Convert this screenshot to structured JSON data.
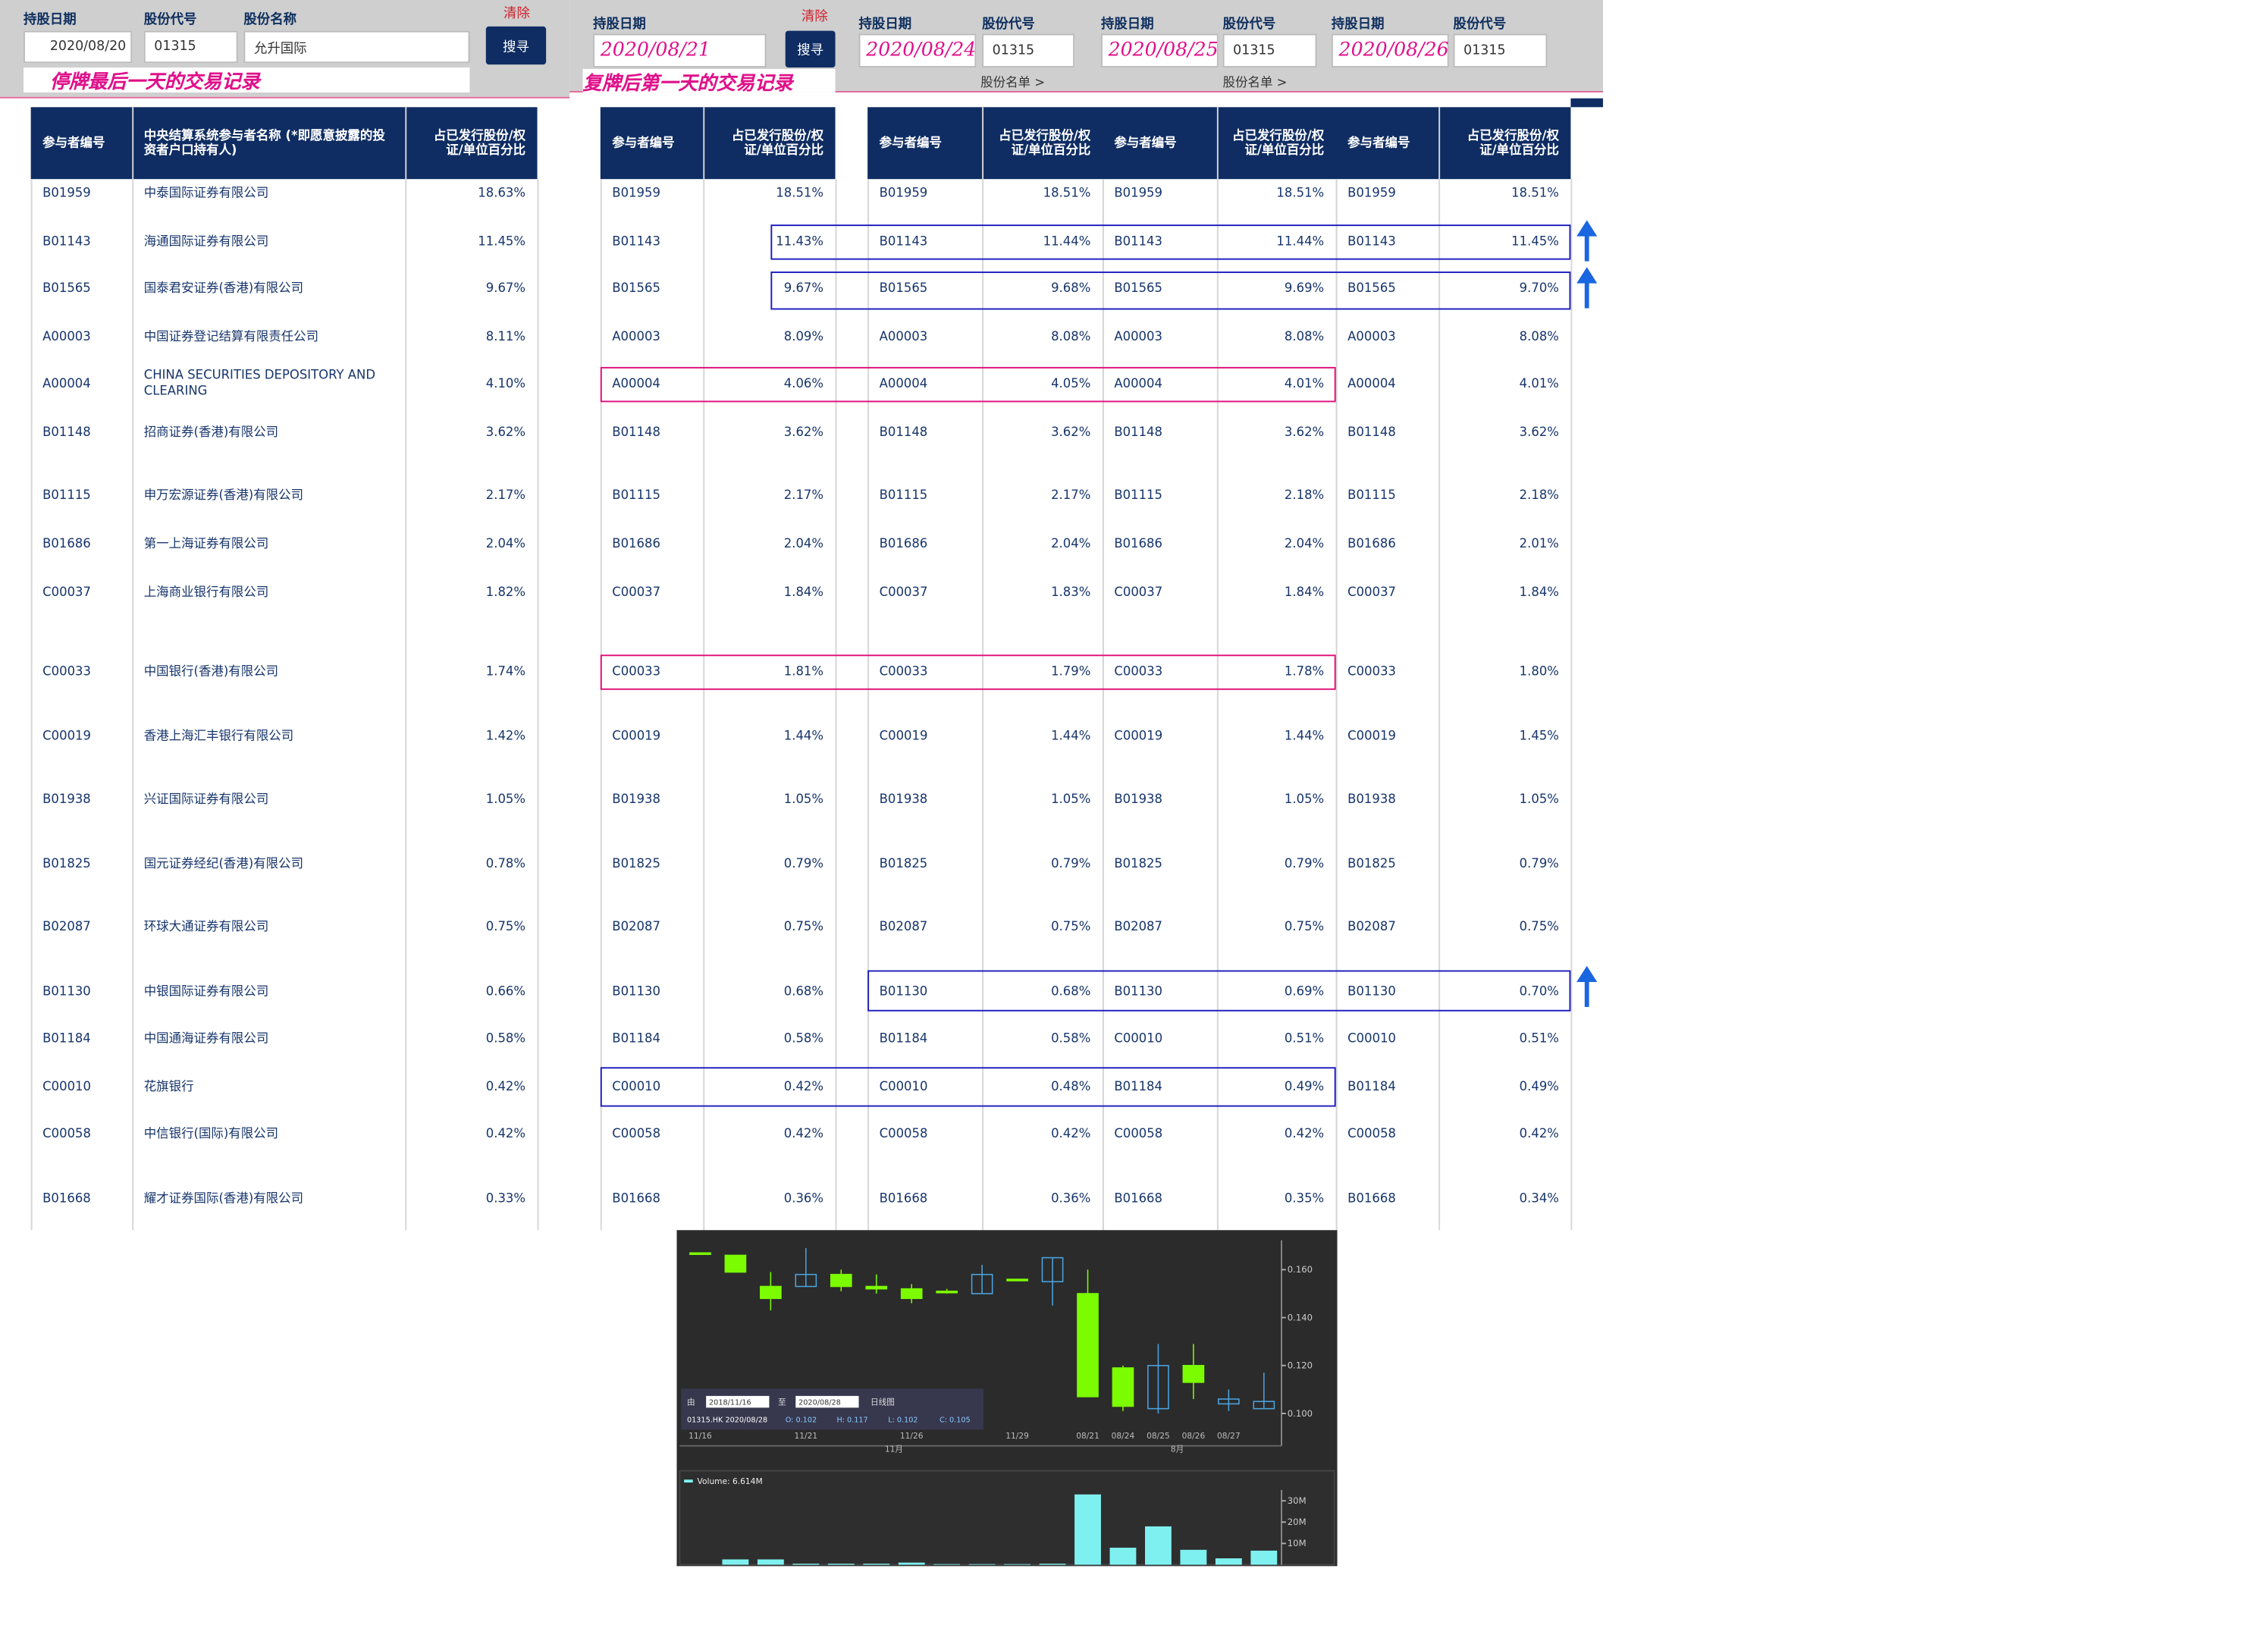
{
  "panels": [
    {
      "date_label": "持股日期",
      "code_label": "股份代号",
      "name_label": "股份名称",
      "date": "2020/08/20",
      "code": "01315",
      "name": "允升国际",
      "search": "搜寻",
      "clear": "清除",
      "note": "停牌最后一天的交易记录"
    },
    {
      "date_label": "持股日期",
      "date": "2020/08/21",
      "search": "搜寻",
      "clear": "清除",
      "note": "复牌后第一天的交易记录"
    },
    {
      "date_label": "持股日期",
      "code_label": "股份代号",
      "date": "2020/08/24",
      "code": "01315",
      "link": "股份名单 >"
    },
    {
      "date_label": "持股日期",
      "code_label": "股份代号",
      "date": "2020/08/25",
      "code": "01315",
      "link": "股份名单 >"
    },
    {
      "date_label": "持股日期",
      "code_label": "股份代号",
      "date": "2020/08/26",
      "code": "01315"
    }
  ],
  "tables": [
    {
      "headers": [
        "参与者编号",
        "中央结算系统参与者名称 (*即愿意披露的投资者户口持有人)",
        "占已发行股份/权证/单位百分比"
      ],
      "rows": [
        [
          "B01959",
          "中泰国际证券有限公司",
          "18.63%"
        ],
        [
          "B01143",
          "海通国际证券有限公司",
          "11.45%"
        ],
        [
          "B01565",
          "国泰君安证券(香港)有限公司",
          "9.67%"
        ],
        [
          "A00003",
          "中国证券登记结算有限责任公司",
          "8.11%"
        ],
        [
          "A00004",
          "CHINA SECURITIES DEPOSITORY AND CLEARING",
          "4.10%"
        ],
        [
          "B01148",
          "招商证券(香港)有限公司",
          "3.62%"
        ],
        [
          "B01115",
          "申万宏源证券(香港)有限公司",
          "2.17%"
        ],
        [
          "B01686",
          "第一上海证券有限公司",
          "2.04%"
        ],
        [
          "C00037",
          "上海商业银行有限公司",
          "1.82%"
        ],
        [
          "C00033",
          "中国银行(香港)有限公司",
          "1.74%"
        ],
        [
          "C00019",
          "香港上海汇丰银行有限公司",
          "1.42%"
        ],
        [
          "B01938",
          "兴证国际证券有限公司",
          "1.05%"
        ],
        [
          "B01825",
          "国元证券经纪(香港)有限公司",
          "0.78%"
        ],
        [
          "B02087",
          "环球大通证券有限公司",
          "0.75%"
        ],
        [
          "B01130",
          "中银国际证券有限公司",
          "0.66%"
        ],
        [
          "B01184",
          "中国通海证券有限公司",
          "0.58%"
        ],
        [
          "C00010",
          "花旗银行",
          "0.42%"
        ],
        [
          "C00058",
          "中信银行(国际)有限公司",
          "0.42%"
        ],
        [
          "B01668",
          "耀才证券国际(香港)有限公司",
          "0.33%"
        ]
      ]
    },
    {
      "headers": [
        "参与者编号",
        "占已发行股份/权证/单位百分比"
      ],
      "rows": [
        [
          "B01959",
          "18.51%"
        ],
        [
          "B01143",
          "11.43%"
        ],
        [
          "B01565",
          "9.67%"
        ],
        [
          "A00003",
          "8.09%"
        ],
        [
          "A00004",
          "4.06%"
        ],
        [
          "B01148",
          "3.62%"
        ],
        [
          "B01115",
          "2.17%"
        ],
        [
          "B01686",
          "2.04%"
        ],
        [
          "C00037",
          "1.84%"
        ],
        [
          "C00033",
          "1.81%"
        ],
        [
          "C00019",
          "1.44%"
        ],
        [
          "B01938",
          "1.05%"
        ],
        [
          "B01825",
          "0.79%"
        ],
        [
          "B02087",
          "0.75%"
        ],
        [
          "B01130",
          "0.68%"
        ],
        [
          "B01184",
          "0.58%"
        ],
        [
          "C00010",
          "0.42%"
        ],
        [
          "C00058",
          "0.42%"
        ],
        [
          "B01668",
          "0.36%"
        ]
      ]
    },
    {
      "headers": [
        "参与者编号",
        "占已发行股份/权证/单位百分比"
      ],
      "rows": [
        [
          "B01959",
          "18.51%"
        ],
        [
          "B01143",
          "11.44%"
        ],
        [
          "B01565",
          "9.68%"
        ],
        [
          "A00003",
          "8.08%"
        ],
        [
          "A00004",
          "4.05%"
        ],
        [
          "B01148",
          "3.62%"
        ],
        [
          "B01115",
          "2.17%"
        ],
        [
          "B01686",
          "2.04%"
        ],
        [
          "C00037",
          "1.83%"
        ],
        [
          "C00033",
          "1.79%"
        ],
        [
          "C00019",
          "1.44%"
        ],
        [
          "B01938",
          "1.05%"
        ],
        [
          "B01825",
          "0.79%"
        ],
        [
          "B02087",
          "0.75%"
        ],
        [
          "B01130",
          "0.68%"
        ],
        [
          "B01184",
          "0.58%"
        ],
        [
          "C00010",
          "0.48%"
        ],
        [
          "C00058",
          "0.42%"
        ],
        [
          "B01668",
          "0.36%"
        ]
      ]
    },
    {
      "headers": [
        "参与者编号",
        "占已发行股份/权证/单位百分比"
      ],
      "rows": [
        [
          "B01959",
          "18.51%"
        ],
        [
          "B01143",
          "11.44%"
        ],
        [
          "B01565",
          "9.69%"
        ],
        [
          "A00003",
          "8.08%"
        ],
        [
          "A00004",
          "4.01%"
        ],
        [
          "B01148",
          "3.62%"
        ],
        [
          "B01115",
          "2.18%"
        ],
        [
          "B01686",
          "2.04%"
        ],
        [
          "C00037",
          "1.84%"
        ],
        [
          "C00033",
          "1.78%"
        ],
        [
          "C00019",
          "1.44%"
        ],
        [
          "B01938",
          "1.05%"
        ],
        [
          "B01825",
          "0.79%"
        ],
        [
          "B02087",
          "0.75%"
        ],
        [
          "B01130",
          "0.69%"
        ],
        [
          "C00010",
          "0.51%"
        ],
        [
          "B01184",
          "0.49%"
        ],
        [
          "C00058",
          "0.42%"
        ],
        [
          "B01668",
          "0.35%"
        ]
      ]
    },
    {
      "headers": [
        "参与者编号",
        "占已发行股份/权证/单位百分比"
      ],
      "rows": [
        [
          "B01959",
          "18.51%"
        ],
        [
          "B01143",
          "11.45%"
        ],
        [
          "B01565",
          "9.70%"
        ],
        [
          "A00003",
          "8.08%"
        ],
        [
          "A00004",
          "4.01%"
        ],
        [
          "B01148",
          "3.62%"
        ],
        [
          "B01115",
          "2.18%"
        ],
        [
          "B01686",
          "2.01%"
        ],
        [
          "C00037",
          "1.84%"
        ],
        [
          "C00033",
          "1.80%"
        ],
        [
          "C00019",
          "1.45%"
        ],
        [
          "B01938",
          "1.05%"
        ],
        [
          "B01825",
          "0.79%"
        ],
        [
          "B02087",
          "0.75%"
        ],
        [
          "B01130",
          "0.70%"
        ],
        [
          "C00010",
          "0.51%"
        ],
        [
          "B01184",
          "0.49%"
        ],
        [
          "C00058",
          "0.42%"
        ],
        [
          "B01668",
          "0.34%"
        ]
      ]
    }
  ],
  "chart_data": {
    "type": "candlestick",
    "categories": [
      "11/16",
      null,
      null,
      "11/21",
      null,
      null,
      "11/26",
      null,
      null,
      "11/29",
      null,
      "08/21",
      "08/24",
      "08/25",
      "08/26",
      "08/27",
      null
    ],
    "x_groups": [
      "11月",
      "8月"
    ],
    "open": [
      0.167,
      0.166,
      0.153,
      0.153,
      0.158,
      0.153,
      0.152,
      0.151,
      0.15,
      0.156,
      0.155,
      0.15,
      0.119,
      0.102,
      0.12,
      0.104,
      0.102
    ],
    "high": [
      0.167,
      0.166,
      0.159,
      0.169,
      0.16,
      0.158,
      0.154,
      0.152,
      0.162,
      0.156,
      0.165,
      0.16,
      0.12,
      0.129,
      0.129,
      0.11,
      0.117
    ],
    "low": [
      0.167,
      0.159,
      0.143,
      0.153,
      0.151,
      0.15,
      0.146,
      0.15,
      0.15,
      0.156,
      0.145,
      0.107,
      0.101,
      0.1,
      0.106,
      0.101,
      0.102
    ],
    "close": [
      0.167,
      0.159,
      0.148,
      0.158,
      0.153,
      0.152,
      0.148,
      0.151,
      0.158,
      0.156,
      0.165,
      0.107,
      0.103,
      0.12,
      0.113,
      0.106,
      0.105
    ],
    "ylim": [
      0.092,
      0.172
    ],
    "yticks": [
      {
        "value": 0.16,
        "label": "0.160"
      },
      {
        "value": 0.14,
        "label": "0.140"
      },
      {
        "value": 0.12,
        "label": "0.120"
      },
      {
        "value": 0.1,
        "label": "0.100"
      }
    ],
    "up_color": "#4aa3df",
    "down_color": "#7cfc00",
    "range_from_label": "由",
    "range_from": "2018/11/16",
    "range_to_label": "至",
    "range_to": "2020/08/28",
    "period": "日线图",
    "quote": "01315.HK 2020/08/28",
    "ohlc": [
      "O: 0.102",
      "H: 0.117",
      "L: 0.102",
      "C: 0.105"
    ],
    "volume_label": "Volume: 6.614M",
    "volume": [
      0,
      2.5,
      2.5,
      0.5,
      0.5,
      0.5,
      1,
      0.3,
      0.3,
      0.3,
      0.5,
      33,
      8,
      18,
      7,
      3,
      6.614
    ],
    "volume_color": "#7ff0f0",
    "vlim": [
      0,
      35
    ],
    "vticks": [
      {
        "value": 30,
        "label": "30M"
      },
      {
        "value": 20,
        "label": "20M"
      },
      {
        "value": 10,
        "label": "10M"
      }
    ]
  }
}
